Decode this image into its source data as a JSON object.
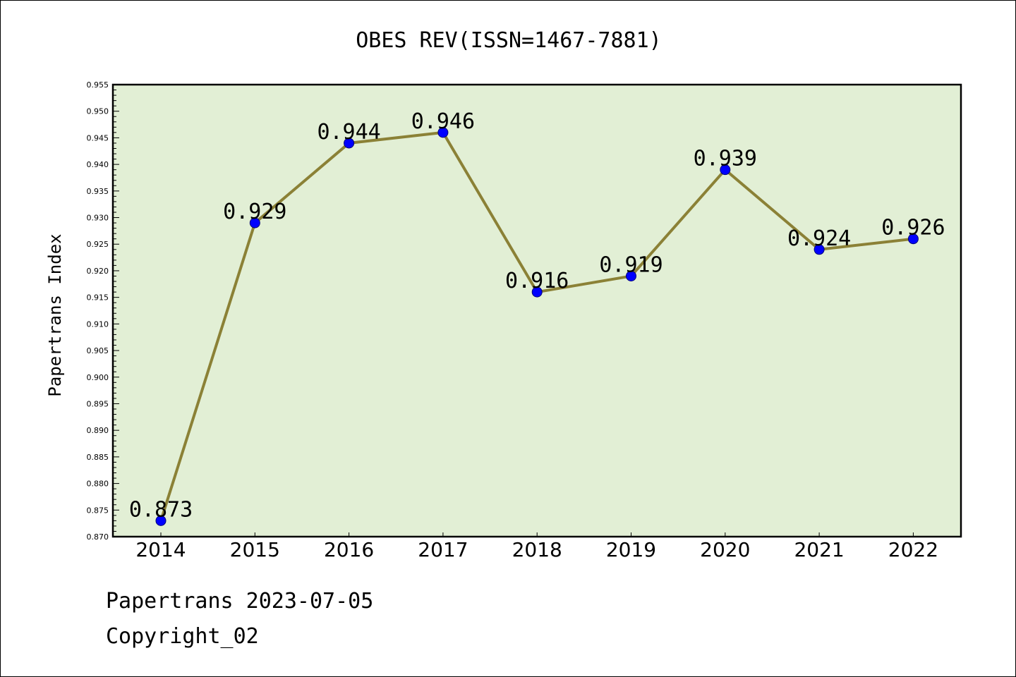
{
  "chart_data": {
    "type": "line",
    "title": "OBES REV(ISSN=1467-7881)",
    "xlabel": "",
    "ylabel": "Papertrans Index",
    "categories": [
      "2014",
      "2015",
      "2016",
      "2017",
      "2018",
      "2019",
      "2020",
      "2021",
      "2022"
    ],
    "values": [
      0.873,
      0.929,
      0.944,
      0.946,
      0.916,
      0.919,
      0.939,
      0.924,
      0.926
    ],
    "data_labels": [
      "0.873",
      "0.929",
      "0.944",
      "0.946",
      "0.916",
      "0.919",
      "0.939",
      "0.924",
      "0.926"
    ],
    "ylim": [
      0.87,
      0.955
    ],
    "yticks": [
      "0.870",
      "0.875",
      "0.880",
      "0.885",
      "0.890",
      "0.895",
      "0.900",
      "0.905",
      "0.910",
      "0.915",
      "0.920",
      "0.925",
      "0.930",
      "0.935",
      "0.940",
      "0.945",
      "0.950",
      "0.955"
    ],
    "grid": false,
    "colors": {
      "plot_background": "#e2efd5",
      "line": "#8b8136",
      "marker": "#0000ff"
    }
  },
  "footer": {
    "line1": "Papertrans 2023-07-05",
    "line2": "Copyright_02"
  }
}
